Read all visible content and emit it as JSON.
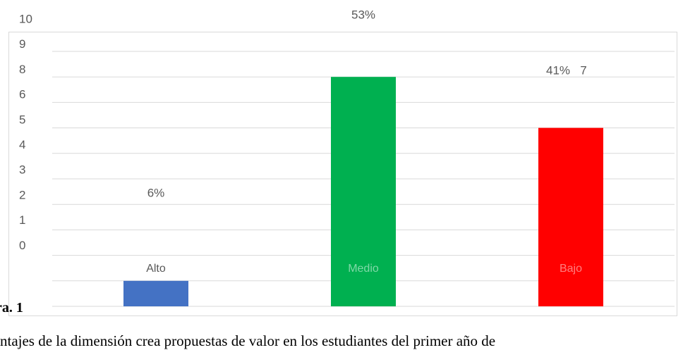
{
  "chart_data": {
    "type": "bar",
    "categories": [
      "Alto",
      "Medio",
      "Bajo"
    ],
    "values": [
      1,
      9,
      7
    ],
    "data_labels": [
      "6%",
      "53%",
      "41%"
    ],
    "y_ticks": [
      "10",
      "9",
      "8",
      "6",
      "5",
      "4",
      "3",
      "2",
      "1",
      "0"
    ],
    "stray_label": "7",
    "colors": [
      "#4472c4",
      "#00b050",
      "#ff0000"
    ],
    "category_label_colors": [
      "#595959",
      "#7fd8a7",
      "#ff7f7f"
    ],
    "ylim": [
      0,
      10
    ],
    "grid": true,
    "title": "",
    "xlabel": "",
    "ylabel": ""
  },
  "figure_label": "ra. 1",
  "caption": "ntajes de la dimensión crea propuestas de valor en los estudiantes del primer año de"
}
